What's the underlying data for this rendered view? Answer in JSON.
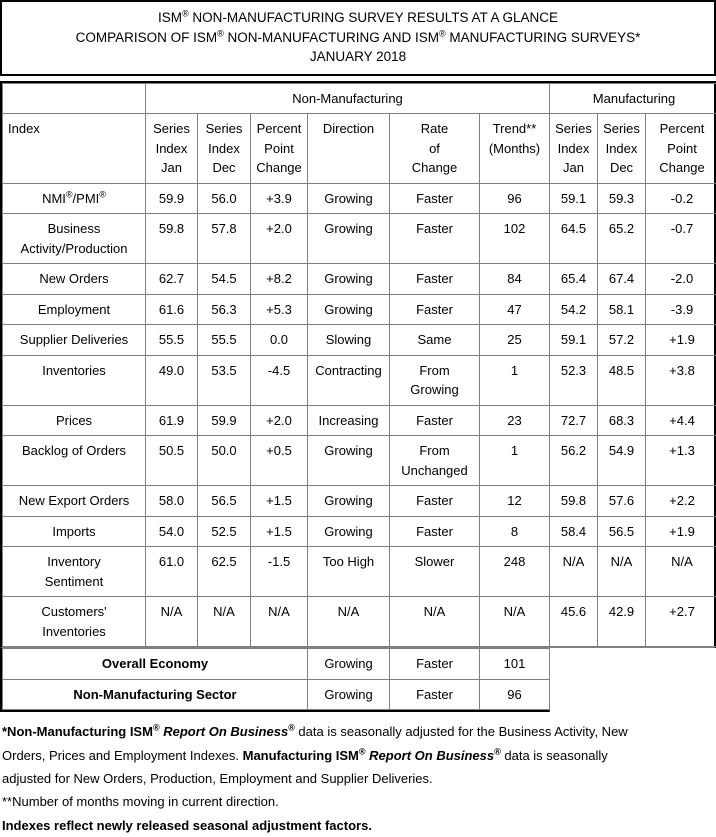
{
  "title": {
    "line1": "ISM® NON-MANUFACTURING SURVEY RESULTS AT A GLANCE",
    "line2": "COMPARISON OF ISM® NON-MANUFACTURING AND ISM® MANUFACTURING SURVEYS*",
    "line3": "JANUARY 2018"
  },
  "table": {
    "group_headers": {
      "blank": "",
      "non_manufacturing": "Non-Manufacturing",
      "manufacturing": "Manufacturing"
    },
    "column_headers": [
      "Index",
      "Series\nIndex\nJan",
      "Series\nIndex\nDec",
      "Percent\nPoint\nChange",
      "Direction",
      "Rate\nof\nChange",
      "Trend**\n(Months)",
      "Series\nIndex\nJan",
      "Series\nIndex\nDec",
      "Percent\nPoint\nChange"
    ],
    "rows": [
      {
        "label": "NMI®/PMI®",
        "cells": [
          "59.9",
          "56.0",
          "+3.9",
          "Growing",
          "Faster",
          "96",
          "59.1",
          "59.3",
          "-0.2"
        ]
      },
      {
        "label": "Business\nActivity/Production",
        "cells": [
          "59.8",
          "57.8",
          "+2.0",
          "Growing",
          "Faster",
          "102",
          "64.5",
          "65.2",
          "-0.7"
        ]
      },
      {
        "label": "New Orders",
        "cells": [
          "62.7",
          "54.5",
          "+8.2",
          "Growing",
          "Faster",
          "84",
          "65.4",
          "67.4",
          "-2.0"
        ]
      },
      {
        "label": "Employment",
        "cells": [
          "61.6",
          "56.3",
          "+5.3",
          "Growing",
          "Faster",
          "47",
          "54.2",
          "58.1",
          "-3.9"
        ]
      },
      {
        "label": "Supplier Deliveries",
        "cells": [
          "55.5",
          "55.5",
          "0.0",
          "Slowing",
          "Same",
          "25",
          "59.1",
          "57.2",
          "+1.9"
        ]
      },
      {
        "label": "Inventories",
        "cells": [
          "49.0",
          "53.5",
          "-4.5",
          "Contracting",
          "From\nGrowing",
          "1",
          "52.3",
          "48.5",
          "+3.8"
        ]
      },
      {
        "label": "Prices",
        "cells": [
          "61.9",
          "59.9",
          "+2.0",
          "Increasing",
          "Faster",
          "23",
          "72.7",
          "68.3",
          "+4.4"
        ]
      },
      {
        "label": "Backlog of Orders",
        "cells": [
          "50.5",
          "50.0",
          "+0.5",
          "Growing",
          "From\nUnchanged",
          "1",
          "56.2",
          "54.9",
          "+1.3"
        ]
      },
      {
        "label": "New Export Orders",
        "cells": [
          "58.0",
          "56.5",
          "+1.5",
          "Growing",
          "Faster",
          "12",
          "59.8",
          "57.6",
          "+2.2"
        ]
      },
      {
        "label": "Imports",
        "cells": [
          "54.0",
          "52.5",
          "+1.5",
          "Growing",
          "Faster",
          "8",
          "58.4",
          "56.5",
          "+1.9"
        ]
      },
      {
        "label": "Inventory\nSentiment",
        "cells": [
          "61.0",
          "62.5",
          "-1.5",
          "Too High",
          "Slower",
          "248",
          "N/A",
          "N/A",
          "N/A"
        ]
      },
      {
        "label": "Customers'\nInventories",
        "cells": [
          "N/A",
          "N/A",
          "N/A",
          "N/A",
          "N/A",
          "N/A",
          "45.6",
          "42.9",
          "+2.7"
        ]
      }
    ],
    "summary_rows": [
      {
        "label": "Overall Economy",
        "direction": "Growing",
        "rate": "Faster",
        "trend": "101"
      },
      {
        "label": "Non-Manufacturing Sector",
        "direction": "Growing",
        "rate": "Faster",
        "trend": "96"
      }
    ]
  },
  "footnotes": {
    "note1_segments": [
      {
        "text": "*Non-Manufacturing ISM® ",
        "bold": true,
        "italic": false
      },
      {
        "text": "Report On Business®",
        "bold": true,
        "italic": true
      },
      {
        "text": " data is seasonally adjusted for the Business Activity, New Orders, Prices and Employment Indexes. ",
        "bold": false,
        "italic": false
      },
      {
        "text": "Manufacturing ISM® ",
        "bold": true,
        "italic": false
      },
      {
        "text": "Report On Business®",
        "bold": true,
        "italic": true
      },
      {
        "text": " data is seasonally adjusted for New Orders, Production, Employment and Supplier Deliveries.",
        "bold": false,
        "italic": false
      }
    ],
    "note2": "**Number of months moving in current direction.",
    "note3": "Indexes reflect newly released seasonal adjustment factors."
  }
}
